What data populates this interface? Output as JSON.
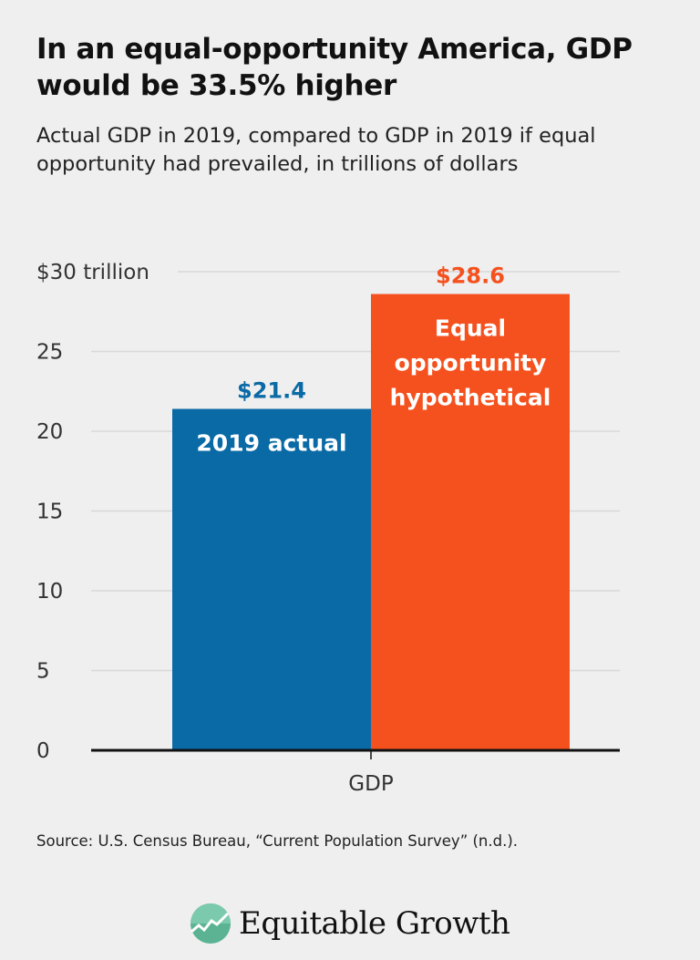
{
  "header": {
    "title": "In an equal-opportunity America, GDP would be 33.5% higher",
    "subtitle": "Actual GDP in 2019, compared to GDP in 2019 if equal opportunity had prevailed, in trillions of dollars"
  },
  "chart_data": {
    "type": "bar",
    "title": "In an equal-opportunity America, GDP would be 33.5% higher",
    "subtitle": "Actual GDP in 2019, compared to GDP in 2019 if equal opportunity had prevailed, in trillions of dollars",
    "categories": [
      "GDP"
    ],
    "series": [
      {
        "name": "2019 actual",
        "values": [
          21.4
        ],
        "label": "$21.4",
        "color": "#0a6aa6"
      },
      {
        "name": "Equal opportunity hypothetical",
        "name_lines": [
          "Equal",
          "opportunity",
          "hypothetical"
        ],
        "values": [
          28.6
        ],
        "label": "$28.6",
        "color": "#f5511e"
      }
    ],
    "ylim": [
      0,
      30
    ],
    "yticks": [
      0,
      5,
      10,
      15,
      20,
      25,
      30
    ],
    "ytick_labels": [
      "0",
      "5",
      "10",
      "15",
      "20",
      "25",
      "$30 trillion"
    ],
    "xlabel": "",
    "ylabel": "",
    "grid": true,
    "legend": "none (labels inside bars)"
  },
  "footer": {
    "source": "Source: U.S. Census Bureau, “Current Population Survey” (n.d.).",
    "logo_text": "Equitable Growth"
  }
}
